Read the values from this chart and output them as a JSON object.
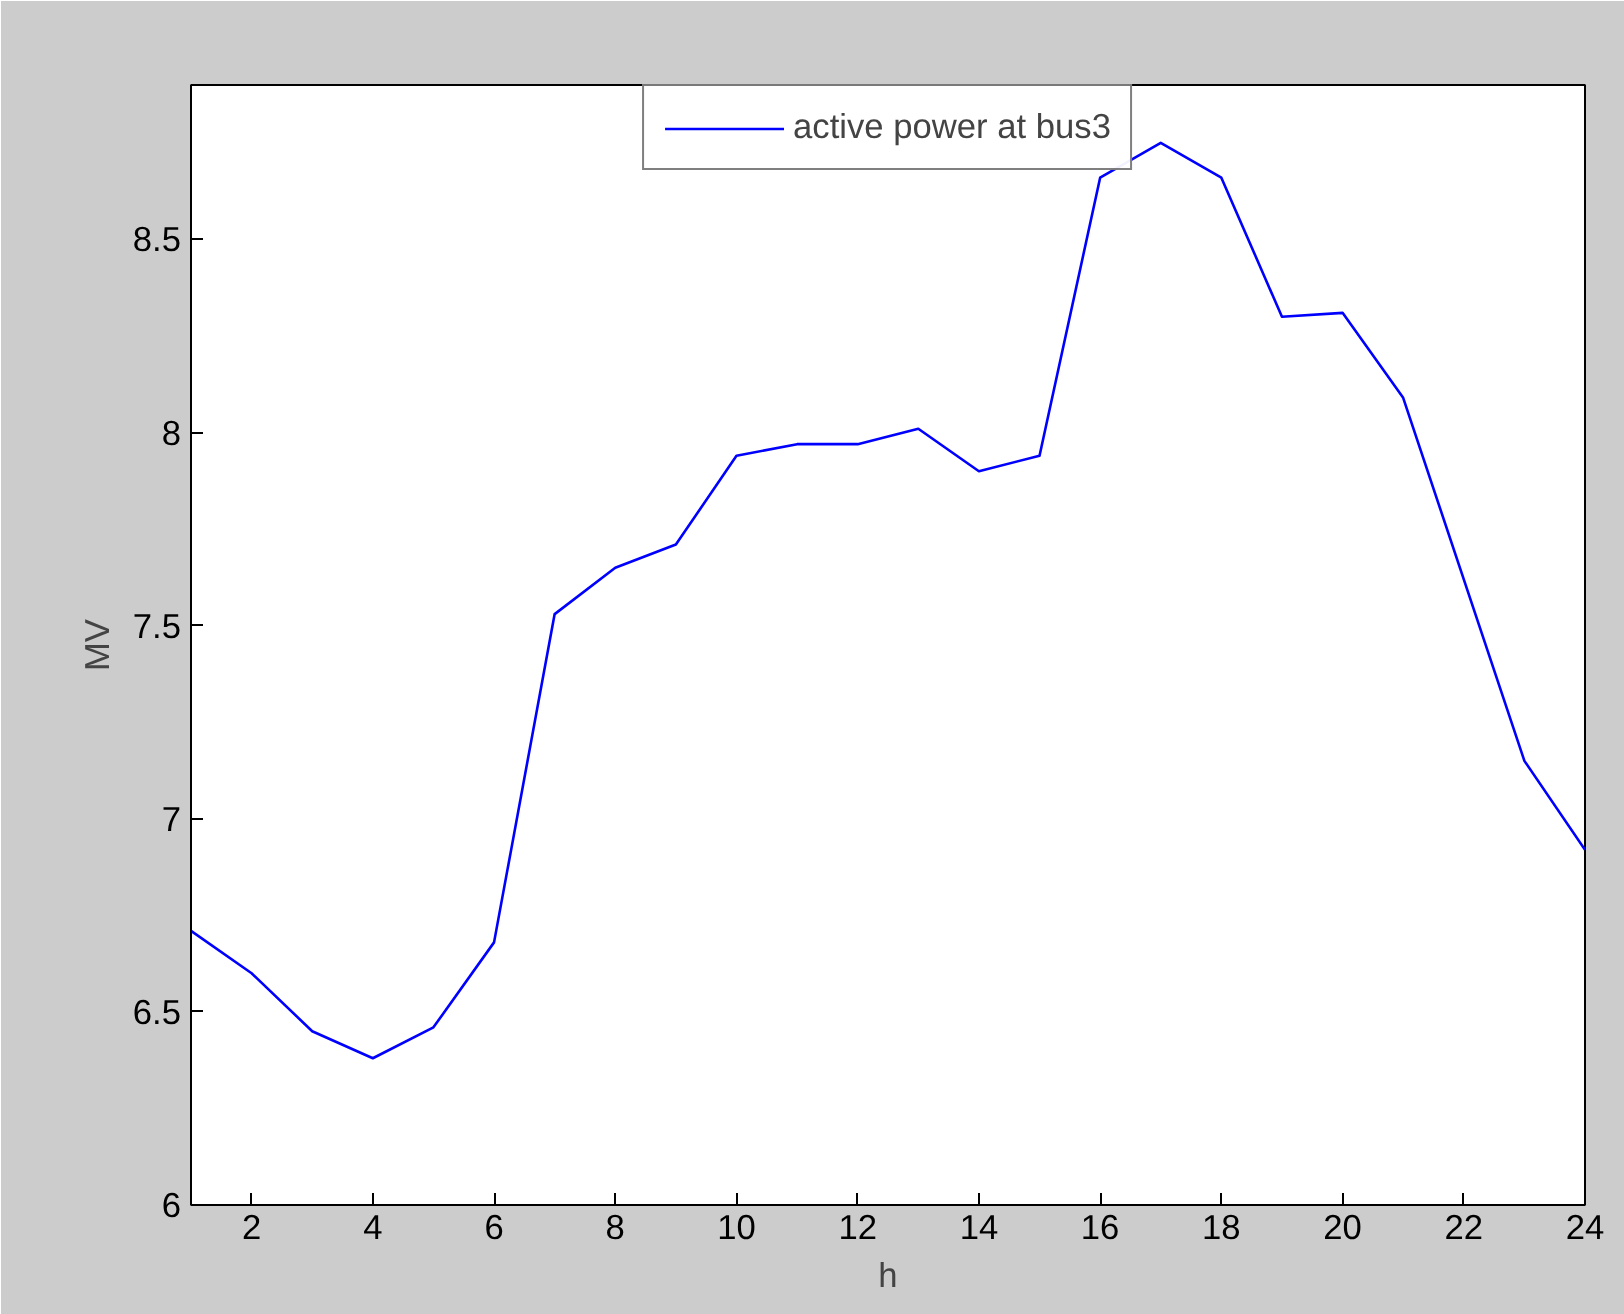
{
  "chart_data": {
    "type": "line",
    "xlabel": "h",
    "ylabel": "MV",
    "x": [
      1,
      2,
      3,
      4,
      5,
      6,
      7,
      8,
      9,
      10,
      11,
      12,
      13,
      14,
      15,
      16,
      17,
      18,
      19,
      20,
      21,
      22,
      23,
      24
    ],
    "series": [
      {
        "name": "active power at bus3",
        "color": "#0000ff",
        "values": [
          6.71,
          6.6,
          6.45,
          6.38,
          6.46,
          6.68,
          7.53,
          7.65,
          7.71,
          7.94,
          7.97,
          7.97,
          8.01,
          7.9,
          7.94,
          8.66,
          8.75,
          8.66,
          8.3,
          8.31,
          8.09,
          7.62,
          7.15,
          6.92
        ]
      }
    ],
    "xlim": [
      1,
      24
    ],
    "xticks": [
      2,
      4,
      6,
      8,
      10,
      12,
      14,
      16,
      18,
      20,
      22,
      24
    ],
    "ylim": [
      6,
      8.9
    ],
    "yticks": [
      6,
      6.5,
      7,
      7.5,
      8,
      8.5
    ],
    "legend": "top",
    "grid": false,
    "marker": "none",
    "line_style": "solid"
  }
}
